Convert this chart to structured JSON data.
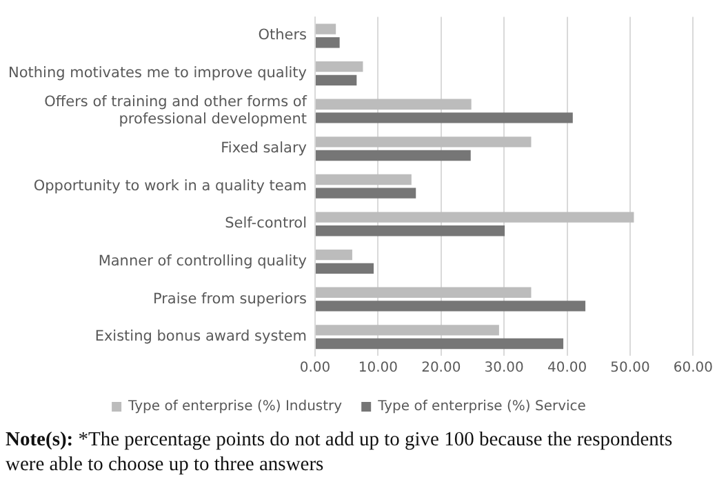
{
  "chart_data": {
    "type": "bar",
    "orientation": "horizontal",
    "categories": [
      "Others",
      "Nothing motivates me to improve quality",
      "Offers of training and other forms of professional development",
      "Fixed salary",
      "Opportunity to work in a quality team",
      "Self-control",
      "Manner of controlling quality",
      "Praise from superiors",
      "Existing bonus award system"
    ],
    "series": [
      {
        "name": "Type of enterprise (%) Industry",
        "color": "#bcbcbc",
        "values": [
          3.3,
          7.6,
          24.8,
          34.3,
          15.3,
          50.6,
          5.9,
          34.3,
          29.2
        ]
      },
      {
        "name": "Type of enterprise (%) Service",
        "color": "#767676",
        "values": [
          3.9,
          6.6,
          40.9,
          24.7,
          16.0,
          30.1,
          9.3,
          42.9,
          39.4
        ]
      }
    ],
    "xlim": [
      0,
      60
    ],
    "xticks": [
      {
        "value": 0,
        "label": "0.00"
      },
      {
        "value": 10,
        "label": "10.00"
      },
      {
        "value": 20,
        "label": "20.00"
      },
      {
        "value": 30,
        "label": "30.00"
      },
      {
        "value": 40,
        "label": "40.00"
      },
      {
        "value": 50,
        "label": "50.00"
      },
      {
        "value": 60,
        "label": "60.00"
      }
    ],
    "grid": "x",
    "legend": "bottom",
    "annotations": [
      "Note(s): *The percentage points do not add up to give 100 because the respondents were able to choose up to three answers"
    ]
  }
}
